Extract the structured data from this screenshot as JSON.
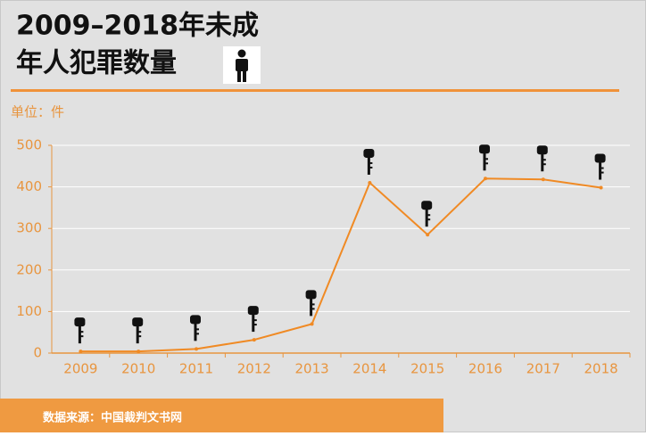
{
  "chart_data": {
    "type": "line",
    "title_line1": "2009–2018年未成",
    "title_line2": "年人犯罪数量",
    "y_label": "单位：件",
    "source": "数据来源：中国裁判文书网",
    "categories": [
      "2009",
      "2010",
      "2011",
      "2012",
      "2013",
      "2014",
      "2015",
      "2016",
      "2017",
      "2018"
    ],
    "series": [
      {
        "name": "未成年人犯罪数量",
        "color": "#f08a24",
        "values": [
          4,
          4,
          10,
          32,
          70,
          410,
          285,
          420,
          418,
          398
        ]
      }
    ],
    "ylim": [
      0,
      500
    ],
    "yticks": [
      0,
      100,
      200,
      300,
      400,
      500
    ],
    "grid": true
  }
}
